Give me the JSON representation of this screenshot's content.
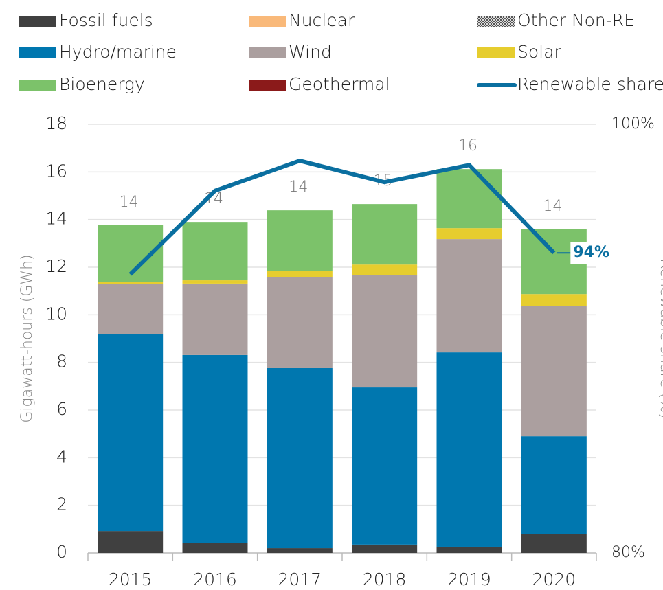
{
  "chart_data": {
    "type": "bar",
    "stacked": true,
    "y_label": "Gigawatt-hours (GWh)",
    "y2_label": "Renewable share (%)",
    "categories": [
      "2015",
      "2016",
      "2017",
      "2018",
      "2019",
      "2020"
    ],
    "series": [
      {
        "name": "Fossil fuels",
        "color": "#404040",
        "values": [
          0.92,
          0.43,
          0.2,
          0.35,
          0.26,
          0.78
        ]
      },
      {
        "name": "Nuclear",
        "color": "#f9b97a",
        "values": [
          0,
          0,
          0,
          0,
          0,
          0
        ]
      },
      {
        "name": "Other Non-RE",
        "color": "#7f7f7f",
        "pattern": "dots",
        "values": [
          0,
          0,
          0,
          0,
          0,
          0
        ]
      },
      {
        "name": "Hydro/marine",
        "color": "#0077af",
        "values": [
          8.28,
          7.88,
          7.56,
          6.6,
          8.16,
          4.12
        ]
      },
      {
        "name": "Wind",
        "color": "#ab9f9f",
        "values": [
          2.08,
          3.0,
          3.81,
          4.73,
          4.76,
          5.48
        ]
      },
      {
        "name": "Solar",
        "color": "#e6cd2e",
        "values": [
          0.09,
          0.14,
          0.26,
          0.43,
          0.46,
          0.49
        ]
      },
      {
        "name": "Bioenergy",
        "color": "#7cc26a",
        "values": [
          2.39,
          2.45,
          2.56,
          2.54,
          2.48,
          2.72
        ]
      },
      {
        "name": "Geothermal",
        "color": "#8b1a1a",
        "values": [
          0,
          0,
          0,
          0,
          0,
          0
        ]
      },
      {
        "name": "Renewable share",
        "color": "#0a6fa0",
        "type": "line",
        "axis": "y2",
        "values": [
          93.0,
          96.9,
          98.3,
          97.3,
          98.1,
          94
        ],
        "value_labels": [
          null,
          null,
          null,
          null,
          null,
          "94%"
        ]
      }
    ],
    "totals": [
      14,
      14,
      14,
      15,
      16,
      14
    ],
    "ylim": [
      0,
      18
    ],
    "yticks": [
      0,
      2,
      4,
      6,
      8,
      10,
      12,
      14,
      16,
      18
    ],
    "y2lim": [
      80,
      100
    ],
    "y2ticks": [
      {
        "value": 80,
        "label": "80%"
      },
      {
        "value": 100,
        "label": "100%"
      }
    ],
    "grid": true,
    "legend": "top"
  }
}
